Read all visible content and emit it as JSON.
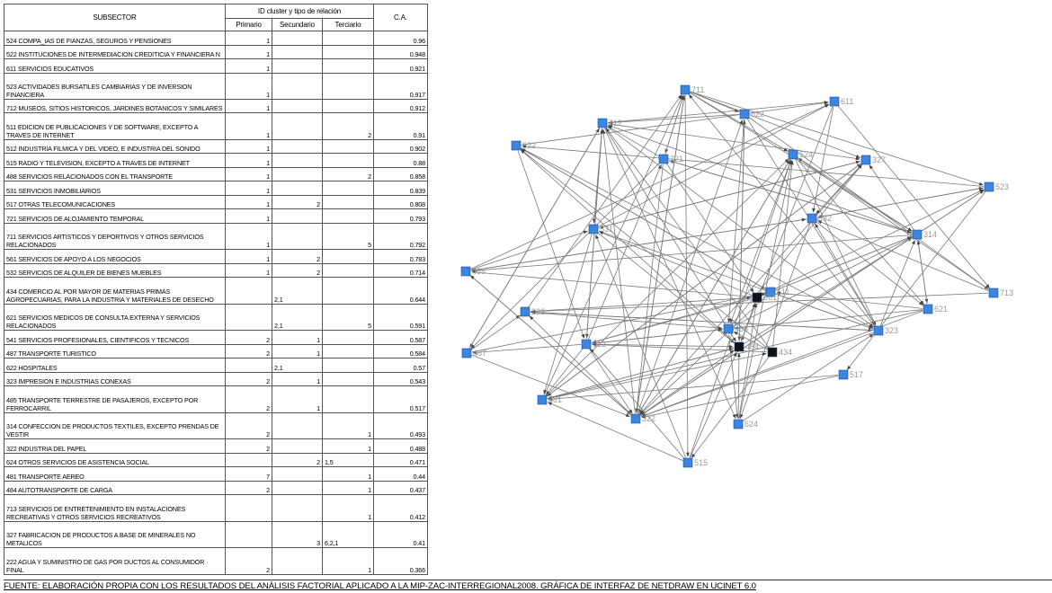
{
  "table": {
    "header": {
      "subsector": "SUBSECTOR",
      "group": "ID cluster y tipo de relación",
      "primario": "Primario",
      "secundario": "Secundario",
      "terciario": "Terciario",
      "ca": "C.A."
    },
    "rows": [
      [
        "524 COMPA_IAS DE FIANZAS, SEGUROS Y PENSIONES",
        "1",
        null,
        null,
        "0.96"
      ],
      [
        "522 INSTITUCIONES DE INTERMEDIACION CREDITICIA Y FINANCIERA N",
        "1",
        null,
        null,
        "0.948"
      ],
      [
        "611 SERVICIOS EDUCATIVOS",
        "1",
        null,
        null,
        "0.921"
      ],
      [
        "523 ACTIVIDADES BURSATILES CAMBIARIAS Y DE INVERSION FINANCIERA",
        "1",
        null,
        null,
        "0.917"
      ],
      [
        "712 MUSEOS, SITIOS HISTORICOS, JARDINES BOTANICOS Y SIMILARES",
        "1",
        null,
        null,
        "0.912"
      ],
      [
        "511 EDICION DE PUBLICACIONES Y DE SOFTWARE, EXCEPTO A TRAVES DE INTERNET",
        "1",
        null,
        "2",
        "0.91"
      ],
      [
        "512 INDUSTRIA FILMICA Y DEL VIDEO, E INDUSTRIA DEL SONIDO",
        "1",
        null,
        null,
        "0.902"
      ],
      [
        "515 RADIO Y TELEVISION, EXCEPTO A TRAVES DE INTERNET",
        "1",
        null,
        null,
        "0.88"
      ],
      [
        "488 SERVICIOS RELACIONADOS CON EL TRANSPORTE",
        "1",
        null,
        "2",
        "0.858"
      ],
      [
        "531 SERVICIOS INMOBILIARIOS",
        "1",
        null,
        null,
        "0.839"
      ],
      [
        "517 OTRAS TELECOMUNICACIONES",
        "1",
        "2",
        null,
        "0.808"
      ],
      [
        "721 SERVICIOS DE ALOJAMIENTO TEMPORAL",
        "1",
        null,
        null,
        "0.793"
      ],
      [
        "711 SERVICIOS ARTISTICOS Y DEPORTIVOS Y OTROS SERVICIOS RELACIONADOS",
        "1",
        null,
        "5",
        "0.792"
      ],
      [
        "561 SERVICIOS DE APOYO A LOS NEGOCIOS",
        "1",
        "2",
        null,
        "0.783"
      ],
      [
        "532 SERVICIOS DE ALQUILER DE BIENES MUEBLES",
        "1",
        "2",
        null,
        "0.714"
      ],
      [
        "434 COMERCIO AL POR MAYOR DE MATERIAS PRIMAS AGROPECUARIAS, PARA LA INDUSTRIA Y MATERIALES DE DESECHO",
        null,
        "2,1",
        null,
        "0.644"
      ],
      [
        "621 SERVICIOS MEDICOS DE CONSULTA EXTERNA Y SERVICIOS RELACIONADOS",
        null,
        "2,1",
        "5",
        "0.591"
      ],
      [
        "541 SERVICIOS PROFESIONALES, CIENTIFICOS Y TECNICOS",
        "2",
        "1",
        null,
        "0.587"
      ],
      [
        "487 TRANSPORTE TURISTICO",
        "2",
        "1",
        null,
        "0.584"
      ],
      [
        "622 HOSPITALES",
        null,
        "2,1",
        null,
        "0.57"
      ],
      [
        "323 IMPRESION E INDUSTRIAS CONEXAS",
        "2",
        "1",
        null,
        "0.543"
      ],
      [
        "485 TRANSPORTE TERRESTRE DE PASAJEROS, EXCEPTO POR FERROCARRIL",
        "2",
        "1",
        null,
        "0.517"
      ],
      [
        "314 CONFECCION DE PRODUCTOS TEXTILES, EXCEPTO PRENDAS DE VESTIR",
        "2",
        null,
        "1",
        "0.493"
      ],
      [
        "322 INDUSTRIA DEL PAPEL",
        "2",
        null,
        "1",
        "0.488"
      ],
      [
        "624 OTROS SERVICIOS DE ASISTENCIA SOCIAL",
        null,
        "2",
        "1,5",
        "0.471"
      ],
      [
        "481 TRANSPORTE AEREO",
        "7",
        null,
        "1",
        "0.44"
      ],
      [
        "484 AUTOTRANSPORTE DE CARGA",
        "2",
        null,
        "1",
        "0.437"
      ],
      [
        "713 SERVICIOS DE ENTRETENIMIENTO EN INSTALACIONES RECREATIVAS Y OTROS SERVICIOS RECREATIVOS",
        null,
        null,
        "1",
        "0.412"
      ],
      [
        "327 FABRICACION DE PRODUCTOS A BASE DE MINERALES NO METALICOS",
        null,
        "3",
        "6,2,1",
        "0.41"
      ],
      [
        "222 AGUA Y SUMINISTRO DE GAS POR DUCTOS AL CONSUMIDOR FINAL",
        "2",
        null,
        "1",
        "0.366"
      ]
    ]
  },
  "network": {
    "nodes": [
      {
        "label": "711",
        "color": "#3a86e0"
      },
      {
        "label": "611",
        "color": "#3a86e0"
      },
      {
        "label": "622",
        "color": "#3a86e0"
      },
      {
        "label": "712",
        "color": "#3a86e0"
      },
      {
        "label": "522",
        "color": "#3a86e0"
      },
      {
        "label": "721",
        "color": "#3a86e0"
      },
      {
        "label": "524",
        "color": "#3a86e0"
      },
      {
        "label": "327",
        "color": "#3a86e0"
      },
      {
        "label": "523",
        "color": "#3a86e0"
      },
      {
        "label": "532",
        "color": "#3a86e0"
      },
      {
        "label": "531",
        "color": "#3a86e0"
      },
      {
        "label": "314",
        "color": "#3a86e0"
      },
      {
        "label": "485",
        "color": "#3a86e0"
      },
      {
        "label": "511",
        "color": "#3a86e0"
      },
      {
        "label": "561",
        "color": "#111111"
      },
      {
        "label": "713",
        "color": "#3a86e0"
      },
      {
        "label": "621",
        "color": "#3a86e0"
      },
      {
        "label": "222",
        "color": "#3a86e0"
      },
      {
        "label": "488",
        "color": "#3a86e0"
      },
      {
        "label": "323",
        "color": "#3a86e0"
      },
      {
        "label": "512",
        "color": "#3a86e0"
      },
      {
        "label": "484",
        "color": "#111111"
      },
      {
        "label": "434",
        "color": "#111111"
      },
      {
        "label": "487",
        "color": "#3a86e0"
      },
      {
        "label": "517",
        "color": "#3a86e0"
      },
      {
        "label": "481",
        "color": "#3a86e0"
      },
      {
        "label": "322",
        "color": "#3a86e0"
      },
      {
        "label": "624",
        "color": "#3a86e0"
      },
      {
        "label": "515",
        "color": "#3a86e0"
      }
    ]
  },
  "footer": "FUENTE: ELABORACIÓN PROPIA CON LOS RESULTADOS DEL ANÁLISIS FACTORIAL APLICADO A LA MIP-ZAC-INTERREGIONAL2008. GRÁFICA DE INTERFAZ DE NETDRAW EN UCINET 6.0"
}
